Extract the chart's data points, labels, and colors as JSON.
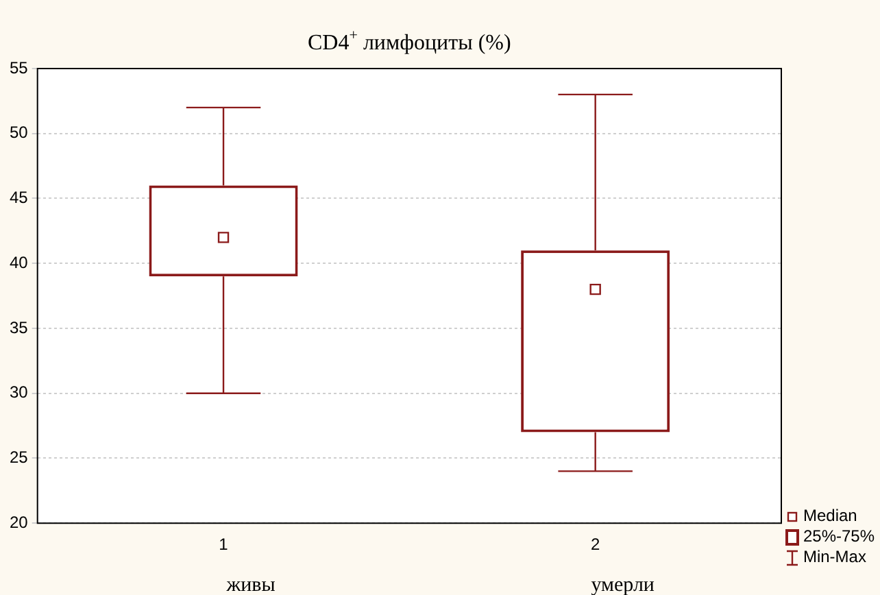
{
  "chart_data": {
    "type": "box",
    "title": "CD4$^{+}$ лимфоциты (%)",
    "categories": [
      "1",
      "2"
    ],
    "series": [
      {
        "color": "#8b1a1a",
        "boxes": [
          {
            "low": 30,
            "q1": 39,
            "median": 42,
            "q3": 46,
            "high": 52
          },
          {
            "low": 24,
            "q1": 27,
            "median": 38,
            "q3": 41,
            "high": 53
          }
        ]
      }
    ],
    "ylim": [
      20,
      55
    ],
    "yticks": [
      20,
      25,
      30,
      35,
      40,
      45,
      50,
      55
    ],
    "grid": "y",
    "annotations": [
      "живы",
      "умерли",
      "Median",
      "25%-75%",
      "Min-Max"
    ]
  }
}
